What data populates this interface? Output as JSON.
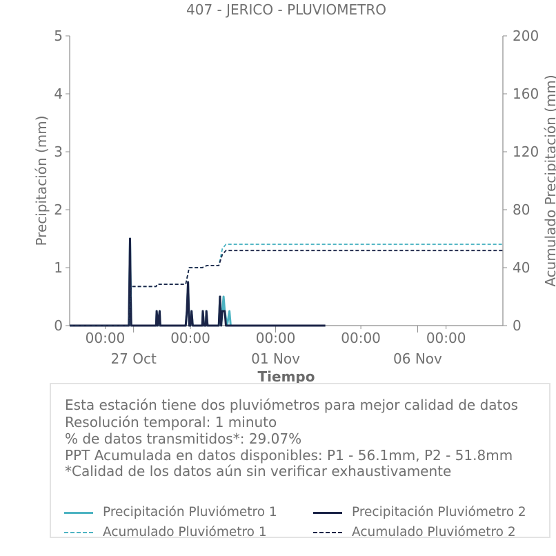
{
  "chart_data": {
    "type": "line",
    "title": "407 - JERICO - PLUVIOMETRO",
    "xlabel": "Tiempo",
    "ylabel_left": "Precipitación (mm)",
    "ylabel_right": "Acumulado Precipitación (mm)",
    "ylim_left": [
      0,
      5
    ],
    "ylim_right": [
      0,
      200
    ],
    "yticks_left": [
      "0",
      "1",
      "2",
      "3",
      "4",
      "5"
    ],
    "yticks_right": [
      "0",
      "40",
      "80",
      "120",
      "160",
      "200"
    ],
    "xlim": [
      "2025-10-24T18:00",
      "2025-11-09T00:00"
    ],
    "x_tick_labels": [
      {
        "x": "2025-10-26T00:00",
        "label": "00:00"
      },
      {
        "x": "2025-10-29T00:00",
        "label": "00:00"
      },
      {
        "x": "2025-11-01T00:00",
        "label": "00:00"
      },
      {
        "x": "2025-11-04T00:00",
        "label": "00:00"
      },
      {
        "x": "2025-11-07T00:00",
        "label": "00:00"
      }
    ],
    "x_date_labels": [
      {
        "x": "2025-10-27T00:00",
        "label": "27 Oct"
      },
      {
        "x": "2025-11-01T00:00",
        "label": "01 Nov"
      },
      {
        "x": "2025-11-06T00:00",
        "label": "06 Nov"
      }
    ],
    "grid": false,
    "series": [
      {
        "name": "Precipitación Pluviómetro 1",
        "axis": "left",
        "color": "#4db3c2",
        "dash": "solid",
        "points": [
          [
            "2025-10-24T18:00",
            0
          ],
          [
            "2025-10-26T20:00",
            0
          ],
          [
            "2025-10-26T21:00",
            1.5
          ],
          [
            "2025-10-26T22:00",
            0
          ],
          [
            "2025-10-27T19:00",
            0
          ],
          [
            "2025-10-27T19:30",
            0.25
          ],
          [
            "2025-10-27T20:30",
            0
          ],
          [
            "2025-10-27T22:00",
            0.25
          ],
          [
            "2025-10-27T22:30",
            0
          ],
          [
            "2025-10-28T20:00",
            0
          ],
          [
            "2025-10-28T21:00",
            0.25
          ],
          [
            "2025-10-28T22:00",
            0.75
          ],
          [
            "2025-10-28T23:00",
            0
          ],
          [
            "2025-10-29T00:00",
            0
          ],
          [
            "2025-10-29T01:00",
            0.25
          ],
          [
            "2025-10-29T02:00",
            0
          ],
          [
            "2025-10-29T10:00",
            0
          ],
          [
            "2025-10-29T10:30",
            0.25
          ],
          [
            "2025-10-29T11:30",
            0
          ],
          [
            "2025-10-29T13:00",
            0
          ],
          [
            "2025-10-29T13:30",
            0.25
          ],
          [
            "2025-10-29T14:30",
            0
          ],
          [
            "2025-10-30T00:00",
            0
          ],
          [
            "2025-10-30T01:00",
            0.5
          ],
          [
            "2025-10-30T02:00",
            0
          ],
          [
            "2025-10-30T04:00",
            0.5
          ],
          [
            "2025-10-30T05:00",
            0.25
          ],
          [
            "2025-10-30T07:00",
            0
          ],
          [
            "2025-10-30T09:00",
            0.25
          ],
          [
            "2025-10-30T10:00",
            0
          ],
          [
            "2025-11-02T18:00",
            0
          ]
        ]
      },
      {
        "name": "Precipitación Pluviómetro 2",
        "axis": "left",
        "color": "#1b2447",
        "dash": "solid",
        "points": [
          [
            "2025-10-24T18:00",
            0
          ],
          [
            "2025-10-26T20:00",
            0
          ],
          [
            "2025-10-26T21:00",
            1.5
          ],
          [
            "2025-10-26T21:30",
            0.5
          ],
          [
            "2025-10-26T22:00",
            0
          ],
          [
            "2025-10-27T19:00",
            0
          ],
          [
            "2025-10-27T19:30",
            0.25
          ],
          [
            "2025-10-27T20:30",
            0
          ],
          [
            "2025-10-27T22:00",
            0.25
          ],
          [
            "2025-10-27T22:30",
            0
          ],
          [
            "2025-10-28T20:00",
            0
          ],
          [
            "2025-10-28T21:00",
            0.25
          ],
          [
            "2025-10-28T22:00",
            0.75
          ],
          [
            "2025-10-28T23:00",
            0
          ],
          [
            "2025-10-29T00:00",
            0
          ],
          [
            "2025-10-29T01:00",
            0.25
          ],
          [
            "2025-10-29T02:00",
            0
          ],
          [
            "2025-10-29T10:00",
            0
          ],
          [
            "2025-10-29T10:30",
            0.25
          ],
          [
            "2025-10-29T11:30",
            0
          ],
          [
            "2025-10-29T13:00",
            0
          ],
          [
            "2025-10-29T13:30",
            0.25
          ],
          [
            "2025-10-29T14:30",
            0
          ],
          [
            "2025-10-30T00:00",
            0
          ],
          [
            "2025-10-30T01:00",
            0.5
          ],
          [
            "2025-10-30T02:00",
            0
          ],
          [
            "2025-10-30T03:00",
            0.25
          ],
          [
            "2025-10-30T05:00",
            0.25
          ],
          [
            "2025-10-30T06:00",
            0
          ],
          [
            "2025-11-02T18:00",
            0
          ]
        ]
      },
      {
        "name": "Acumulado Pluviómetro 1",
        "axis": "right",
        "color": "#4db3c2",
        "dash": "dashed",
        "points": [
          [
            "2025-10-24T18:00",
            0
          ],
          [
            "2025-10-26T20:00",
            0
          ],
          [
            "2025-10-26T22:00",
            27
          ],
          [
            "2025-10-27T19:00",
            27
          ],
          [
            "2025-10-27T20:00",
            28.5
          ],
          [
            "2025-10-28T20:00",
            28.5
          ],
          [
            "2025-10-28T23:00",
            40
          ],
          [
            "2025-10-29T10:00",
            40
          ],
          [
            "2025-10-29T14:00",
            41.5
          ],
          [
            "2025-10-30T00:00",
            41.5
          ],
          [
            "2025-10-30T03:00",
            53
          ],
          [
            "2025-10-30T06:00",
            56.1
          ],
          [
            "2025-11-09T00:00",
            56.1
          ]
        ]
      },
      {
        "name": "Acumulado Pluviómetro 2",
        "axis": "right",
        "color": "#1b2447",
        "dash": "dashed",
        "points": [
          [
            "2025-10-24T18:00",
            0
          ],
          [
            "2025-10-26T20:00",
            0
          ],
          [
            "2025-10-26T22:00",
            27
          ],
          [
            "2025-10-27T19:00",
            27
          ],
          [
            "2025-10-27T20:00",
            28.5
          ],
          [
            "2025-10-28T20:00",
            28.5
          ],
          [
            "2025-10-28T23:00",
            40
          ],
          [
            "2025-10-29T10:00",
            40
          ],
          [
            "2025-10-29T14:00",
            41.5
          ],
          [
            "2025-10-30T00:00",
            41.5
          ],
          [
            "2025-10-30T03:00",
            49
          ],
          [
            "2025-10-30T06:00",
            51.8
          ],
          [
            "2025-11-09T00:00",
            51.8
          ]
        ]
      }
    ]
  },
  "info": {
    "lines": [
      "Esta estación tiene dos pluviómetros para mejor calidad de datos",
      "Resolución temporal: 1 minuto",
      "% de datos transmitidos*: 29.07%",
      "PPT Acumulada en datos disponibles: P1 - 56.1mm, P2 - 51.8mm",
      "*Calidad de los datos aún sin verificar exhaustivamente"
    ]
  },
  "legend": {
    "items": [
      {
        "label": "Precipitación Pluviómetro 1",
        "color": "#4db3c2",
        "dash": "solid"
      },
      {
        "label": "Precipitación Pluviómetro 2",
        "color": "#1b2447",
        "dash": "solid"
      },
      {
        "label": "Acumulado Pluviómetro 1",
        "color": "#4db3c2",
        "dash": "dashed"
      },
      {
        "label": "Acumulado Pluviómetro 2",
        "color": "#1b2447",
        "dash": "dashed"
      }
    ]
  }
}
